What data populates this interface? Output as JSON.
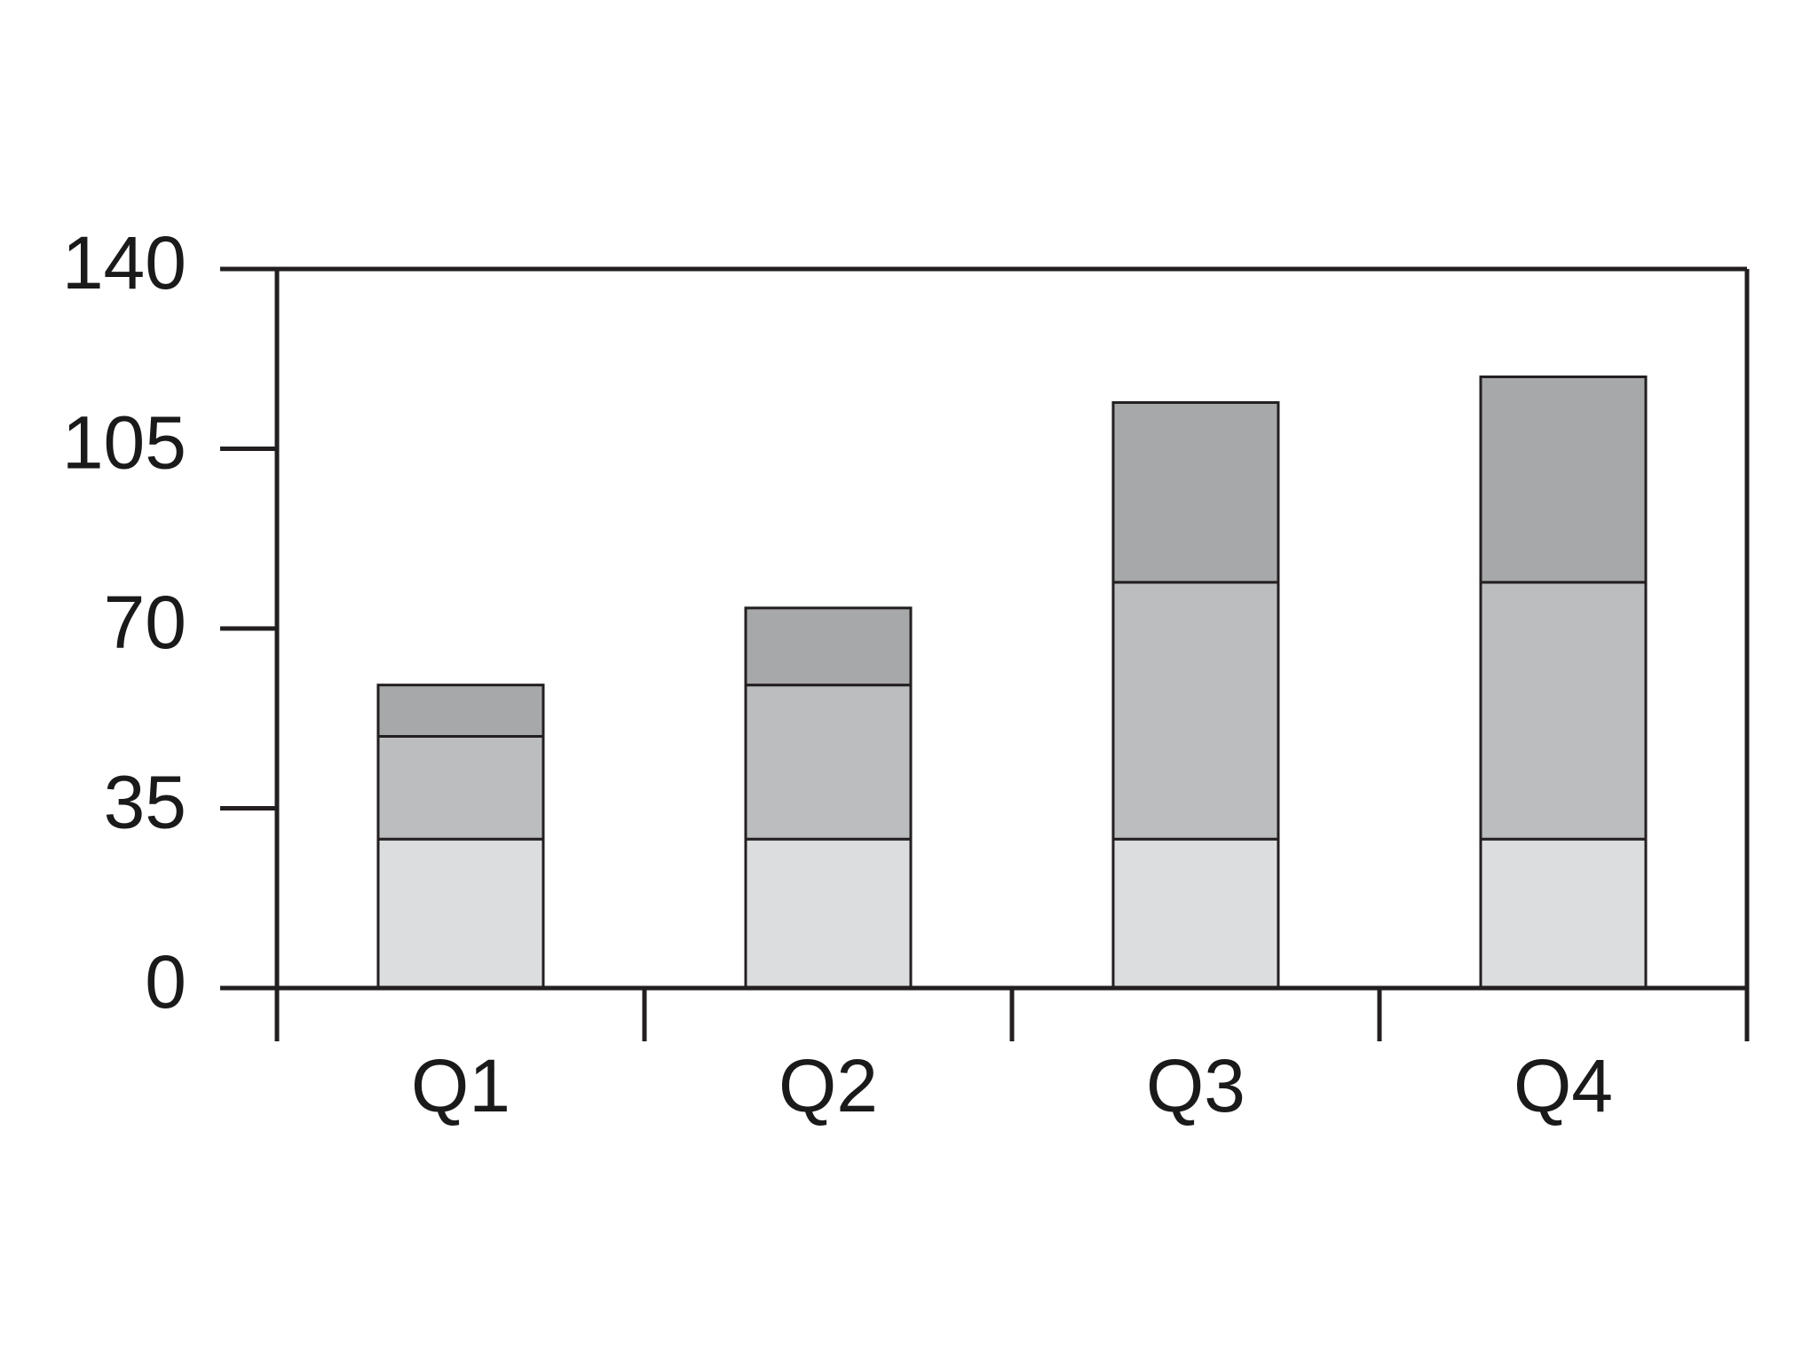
{
  "chart_data": {
    "type": "bar",
    "stacked": true,
    "categories": [
      "Q1",
      "Q2",
      "Q3",
      "Q4"
    ],
    "series": [
      {
        "values": [
          29,
          29,
          29,
          29
        ],
        "color": "#dcdddf"
      },
      {
        "values": [
          20,
          30,
          50,
          50
        ],
        "color": "#bcbdbf"
      },
      {
        "values": [
          10,
          15,
          35,
          40
        ],
        "color": "#a7a8aa"
      }
    ],
    "ylim": [
      0,
      140
    ],
    "yticks": [
      "0",
      "35",
      "70",
      "105",
      "140"
    ],
    "grid": false,
    "legend": "none",
    "axis_color": "#231f20"
  }
}
